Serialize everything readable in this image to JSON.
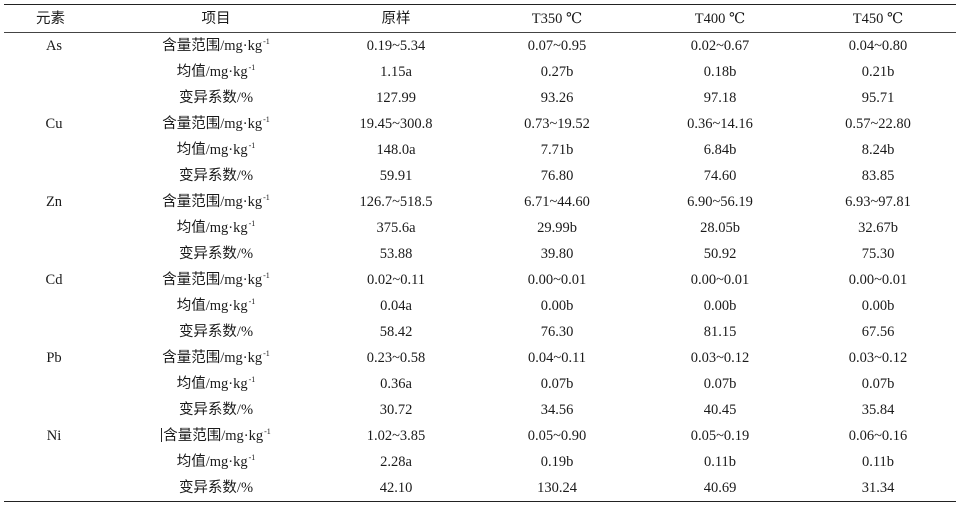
{
  "table": {
    "headers": {
      "element": "元素",
      "item": "项目",
      "raw": "原样",
      "t350": "T350 ℃",
      "t400": "T400 ℃",
      "t450": "T450 ℃"
    },
    "groups": [
      {
        "element": "As",
        "rows": [
          {
            "item": "含量范围/mg·kg",
            "exp": "-1",
            "raw": "0.19~5.34",
            "t350": "0.07~0.95",
            "t400": "0.02~0.67",
            "t450": "0.04~0.80"
          },
          {
            "item": "均值/mg·kg",
            "exp": "-1",
            "raw": "1.15a",
            "t350": "0.27b",
            "t400": "0.18b",
            "t450": "0.21b"
          },
          {
            "item": "变异系数/%",
            "exp": "",
            "raw": "127.99",
            "t350": "93.26",
            "t400": "97.18",
            "t450": "95.71"
          }
        ]
      },
      {
        "element": "Cu",
        "rows": [
          {
            "item": "含量范围/mg·kg",
            "exp": "-1",
            "raw": "19.45~300.8",
            "t350": "0.73~19.52",
            "t400": "0.36~14.16",
            "t450": "0.57~22.80"
          },
          {
            "item": "均值/mg·kg",
            "exp": "-1",
            "raw": "148.0a",
            "t350": "7.71b",
            "t400": "6.84b",
            "t450": "8.24b"
          },
          {
            "item": "变异系数/%",
            "exp": "",
            "raw": "59.91",
            "t350": "76.80",
            "t400": "74.60",
            "t450": "83.85"
          }
        ]
      },
      {
        "element": "Zn",
        "rows": [
          {
            "item": "含量范围/mg·kg",
            "exp": "-1",
            "raw": "126.7~518.5",
            "t350": "6.71~44.60",
            "t400": "6.90~56.19",
            "t450": "6.93~97.81"
          },
          {
            "item": "均值/mg·kg",
            "exp": "-1",
            "raw": "375.6a",
            "t350": "29.99b",
            "t400": "28.05b",
            "t450": "32.67b"
          },
          {
            "item": "变异系数/%",
            "exp": "",
            "raw": "53.88",
            "t350": "39.80",
            "t400": "50.92",
            "t450": "75.30"
          }
        ]
      },
      {
        "element": "Cd",
        "rows": [
          {
            "item": "含量范围/mg·kg",
            "exp": "-1",
            "raw": "0.02~0.11",
            "t350": "0.00~0.01",
            "t400": "0.00~0.01",
            "t450": "0.00~0.01"
          },
          {
            "item": "均值/mg·kg",
            "exp": "-1",
            "raw": "0.04a",
            "t350": "0.00b",
            "t400": "0.00b",
            "t450": "0.00b"
          },
          {
            "item": "变异系数/%",
            "exp": "",
            "raw": "58.42",
            "t350": "76.30",
            "t400": "81.15",
            "t450": "67.56"
          }
        ]
      },
      {
        "element": "Pb",
        "rows": [
          {
            "item": "含量范围/mg·kg",
            "exp": "-1",
            "raw": "0.23~0.58",
            "t350": "0.04~0.11",
            "t400": "0.03~0.12",
            "t450": "0.03~0.12"
          },
          {
            "item": "均值/mg·kg",
            "exp": "-1",
            "raw": "0.36a",
            "t350": "0.07b",
            "t400": "0.07b",
            "t450": "0.07b"
          },
          {
            "item": "变异系数/%",
            "exp": "",
            "raw": "30.72",
            "t350": "34.56",
            "t400": "40.45",
            "t450": "35.84"
          }
        ]
      },
      {
        "element": "Ni",
        "rows": [
          {
            "item": "含量范围/mg·kg",
            "exp": "-1",
            "raw": "1.02~3.85",
            "t350": "0.05~0.90",
            "t400": "0.05~0.19",
            "t450": "0.06~0.16",
            "cursor": true
          },
          {
            "item": "均值/mg·kg",
            "exp": "-1",
            "raw": "2.28a",
            "t350": "0.19b",
            "t400": "0.11b",
            "t450": "0.11b"
          },
          {
            "item": "变异系数/%",
            "exp": "",
            "raw": "42.10",
            "t350": "130.24",
            "t400": "40.69",
            "t450": "31.34"
          }
        ]
      }
    ]
  }
}
